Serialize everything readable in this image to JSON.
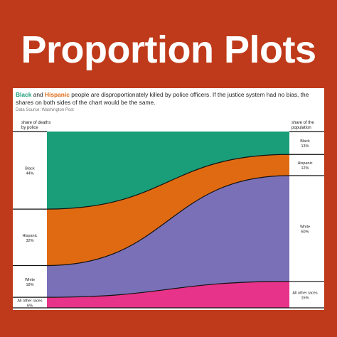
{
  "banner": {
    "title": "Proportion Plots"
  },
  "headline": {
    "black": "Black",
    "and": " and ",
    "hispanic": "Hispanic",
    "rest": " people are disproportionately killed by police officers. If the justice system had no bias, the shares on both sides of the chart would be the same."
  },
  "source": "Data Source: Washington Post",
  "chart_data": {
    "type": "area",
    "left_axis_label": [
      "share of deaths",
      "by police"
    ],
    "right_axis_label": [
      "share of the",
      "population"
    ],
    "series": [
      {
        "name": "Black",
        "left_label": "Black",
        "left_value_label": "44%",
        "left": 44,
        "right_label": "Black",
        "right_value_label": "13%",
        "right": 13,
        "color": "#1a9e7a"
      },
      {
        "name": "Hispanic",
        "left_label": "Hispanic",
        "left_value_label": "32%",
        "left": 32,
        "right_label": "Hispanic",
        "right_value_label": "12%",
        "right": 12,
        "color": "#e06a12"
      },
      {
        "name": "White",
        "left_label": "White",
        "left_value_label": "18%",
        "left": 18,
        "right_label": "White",
        "right_value_label": "60%",
        "right": 60,
        "color": "#7a70b8"
      },
      {
        "name": "All other races",
        "left_label": "All other races",
        "left_value_label": "6%",
        "left": 6,
        "right_label": "All other races",
        "right_value_label": "15%",
        "right": 15,
        "color": "#e8338a"
      }
    ]
  }
}
